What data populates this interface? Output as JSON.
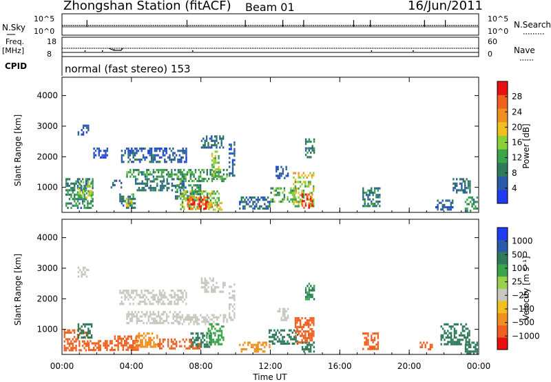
{
  "header": {
    "station": "Zhongshan Station (fitACF)",
    "beam": "Beam 01",
    "date": "16/Jun/2011"
  },
  "nsky": {
    "left_label": "N.Sky",
    "right_label": "N.Search",
    "ticks": [
      "10^5",
      "10^0"
    ]
  },
  "freq": {
    "left_label_1": "Freq.",
    "left_label_2": "[MHz]",
    "left_ticks": [
      "18",
      "8"
    ],
    "right_label": "Nave",
    "right_ticks": [
      "60",
      "0"
    ]
  },
  "cpid": {
    "label": "CPID",
    "text": "normal (fast stereo) 153"
  },
  "x_axis": {
    "label": "Time UT",
    "ticks": [
      "00:00",
      "04:00",
      "08:00",
      "12:00",
      "16:00",
      "20:00",
      "00:00"
    ]
  },
  "colors": {
    "power": [
      "#1f3cf0",
      "#2a5aa8",
      "#2f7a5a",
      "#3aa54a",
      "#8ad03a",
      "#f0c020",
      "#f09020",
      "#f06020",
      "#e81010"
    ],
    "velocity": [
      "#1f3cf0",
      "#2a5aa8",
      "#2f7a5a",
      "#3aa54a",
      "#9ad04a",
      "#c8c8c0",
      "#f0c020",
      "#f09020",
      "#f06020",
      "#e81010"
    ]
  },
  "chart_data": [
    {
      "type": "heatmap",
      "title": "Power",
      "ylabel": "Slant Range [km]",
      "xlabel": "",
      "yticks": [
        "1000",
        "2000",
        "3000",
        "4000"
      ],
      "ylim": [
        180,
        4600
      ],
      "xlim": [
        0,
        24
      ],
      "colorbar_label": "Power [dB]",
      "colorbar_ticks": [
        "4",
        "8",
        "12",
        "16",
        "20",
        "24",
        "28"
      ],
      "colorbar_range": [
        0,
        30
      ],
      "patches": [
        {
          "x": [
            0.2,
            1.8
          ],
          "y": [
            300,
            1300
          ],
          "v": 9
        },
        {
          "x": [
            0.9,
            1.7
          ],
          "y": [
            650,
            1200
          ],
          "v": 14
        },
        {
          "x": [
            0.9,
            1.5
          ],
          "y": [
            2700,
            3050
          ],
          "v": 5
        },
        {
          "x": [
            1.8,
            2.6
          ],
          "y": [
            2000,
            2300
          ],
          "v": 4
        },
        {
          "x": [
            2.8,
            3.4
          ],
          "y": [
            1000,
            1250
          ],
          "v": 6
        },
        {
          "x": [
            3.3,
            4.2
          ],
          "y": [
            300,
            800
          ],
          "v": 8
        },
        {
          "x": [
            3.6,
            4.0
          ],
          "y": [
            400,
            800
          ],
          "v": 15
        },
        {
          "x": [
            3.4,
            7.2
          ],
          "y": [
            1800,
            2300
          ],
          "v": 5
        },
        {
          "x": [
            3.7,
            6.8
          ],
          "y": [
            1350,
            1600
          ],
          "v": 10
        },
        {
          "x": [
            4.2,
            7.0
          ],
          "y": [
            900,
            1300
          ],
          "v": 7
        },
        {
          "x": [
            6.5,
            8.0
          ],
          "y": [
            600,
            1100
          ],
          "v": 9
        },
        {
          "x": [
            6.6,
            9.5
          ],
          "y": [
            1200,
            1600
          ],
          "v": 11
        },
        {
          "x": [
            6.8,
            9.0
          ],
          "y": [
            300,
            900
          ],
          "v": 14
        },
        {
          "x": [
            7.2,
            8.4
          ],
          "y": [
            300,
            700
          ],
          "v": 26
        },
        {
          "x": [
            8.4,
            9.2
          ],
          "y": [
            300,
            520
          ],
          "v": 20
        },
        {
          "x": [
            8.0,
            9.3
          ],
          "y": [
            2300,
            2700
          ],
          "v": 6
        },
        {
          "x": [
            8.6,
            9.0
          ],
          "y": [
            1400,
            2200
          ],
          "v": 15
        },
        {
          "x": [
            9.6,
            9.9
          ],
          "y": [
            1300,
            2500
          ],
          "v": 6
        },
        {
          "x": [
            10.2,
            12.0
          ],
          "y": [
            300,
            700
          ],
          "v": 6
        },
        {
          "x": [
            12.3,
            13.0
          ],
          "y": [
            1300,
            1700
          ],
          "v": 5
        },
        {
          "x": [
            12.0,
            13.5
          ],
          "y": [
            500,
            1000
          ],
          "v": 12
        },
        {
          "x": [
            13.3,
            14.5
          ],
          "y": [
            400,
            1500
          ],
          "v": 16
        },
        {
          "x": [
            13.8,
            14.4
          ],
          "y": [
            300,
            800
          ],
          "v": 27
        },
        {
          "x": [
            14.0,
            14.5
          ],
          "y": [
            2000,
            2600
          ],
          "v": 8
        },
        {
          "x": [
            17.3,
            18.3
          ],
          "y": [
            400,
            1000
          ],
          "v": 8
        },
        {
          "x": [
            21.5,
            22.5
          ],
          "y": [
            300,
            600
          ],
          "v": 6
        },
        {
          "x": [
            22.5,
            23.5
          ],
          "y": [
            800,
            1300
          ],
          "v": 7
        },
        {
          "x": [
            23.2,
            23.9
          ],
          "y": [
            250,
            700
          ],
          "v": 10
        }
      ]
    },
    {
      "type": "heatmap",
      "title": "Velocity",
      "ylabel": "Slant Range [km]",
      "xlabel": "Time UT",
      "yticks": [
        "1000",
        "2000",
        "3000",
        "4000"
      ],
      "ylim": [
        180,
        4600
      ],
      "xlim": [
        0,
        24
      ],
      "colorbar_label": "Velocity [m s⁻¹]",
      "colorbar_ticks": [
        "1000",
        "500",
        "100",
        "25",
        "−25",
        "−100",
        "−500",
        "−1000"
      ],
      "patches": [
        {
          "x": [
            0.1,
            1.5
          ],
          "y": [
            300,
            1000
          ],
          "v": -300
        },
        {
          "x": [
            0.9,
            1.7
          ],
          "y": [
            700,
            1200
          ],
          "v": 200
        },
        {
          "x": [
            0.9,
            1.5
          ],
          "y": [
            2700,
            3050
          ],
          "v": 0
        },
        {
          "x": [
            1.5,
            3.0
          ],
          "y": [
            300,
            650
          ],
          "v": -300
        },
        {
          "x": [
            3.0,
            4.5
          ],
          "y": [
            350,
            800
          ],
          "v": -200
        },
        {
          "x": [
            3.3,
            7.2
          ],
          "y": [
            1800,
            2300
          ],
          "v": 0
        },
        {
          "x": [
            3.7,
            6.8
          ],
          "y": [
            1200,
            1600
          ],
          "v": 0
        },
        {
          "x": [
            4.2,
            5.5
          ],
          "y": [
            400,
            900
          ],
          "v": -50
        },
        {
          "x": [
            5.5,
            8.0
          ],
          "y": [
            350,
            700
          ],
          "v": -350
        },
        {
          "x": [
            6.6,
            9.5
          ],
          "y": [
            1200,
            1500
          ],
          "v": 0
        },
        {
          "x": [
            7.4,
            8.6
          ],
          "y": [
            400,
            900
          ],
          "v": 150
        },
        {
          "x": [
            8.0,
            9.4
          ],
          "y": [
            2200,
            2700
          ],
          "v": 0
        },
        {
          "x": [
            8.3,
            9.3
          ],
          "y": [
            500,
            1200
          ],
          "v": 60
        },
        {
          "x": [
            9.6,
            9.9
          ],
          "y": [
            1300,
            2500
          ],
          "v": 0
        },
        {
          "x": [
            10.2,
            12.0
          ],
          "y": [
            300,
            600
          ],
          "v": -80
        },
        {
          "x": [
            11.9,
            13.6
          ],
          "y": [
            500,
            1000
          ],
          "v": 300
        },
        {
          "x": [
            12.4,
            13.0
          ],
          "y": [
            1300,
            1700
          ],
          "v": 0
        },
        {
          "x": [
            13.4,
            14.5
          ],
          "y": [
            600,
            1400
          ],
          "v": -350
        },
        {
          "x": [
            13.8,
            14.5
          ],
          "y": [
            300,
            600
          ],
          "v": 300
        },
        {
          "x": [
            14.0,
            14.5
          ],
          "y": [
            2000,
            2600
          ],
          "v": 100
        },
        {
          "x": [
            17.3,
            18.2
          ],
          "y": [
            350,
            900
          ],
          "v": -300
        },
        {
          "x": [
            20.6,
            21.3
          ],
          "y": [
            350,
            600
          ],
          "v": -300
        },
        {
          "x": [
            21.8,
            23.5
          ],
          "y": [
            500,
            1200
          ],
          "v": 250
        },
        {
          "x": [
            23.2,
            23.9
          ],
          "y": [
            200,
            600
          ],
          "v": 150
        }
      ]
    }
  ]
}
